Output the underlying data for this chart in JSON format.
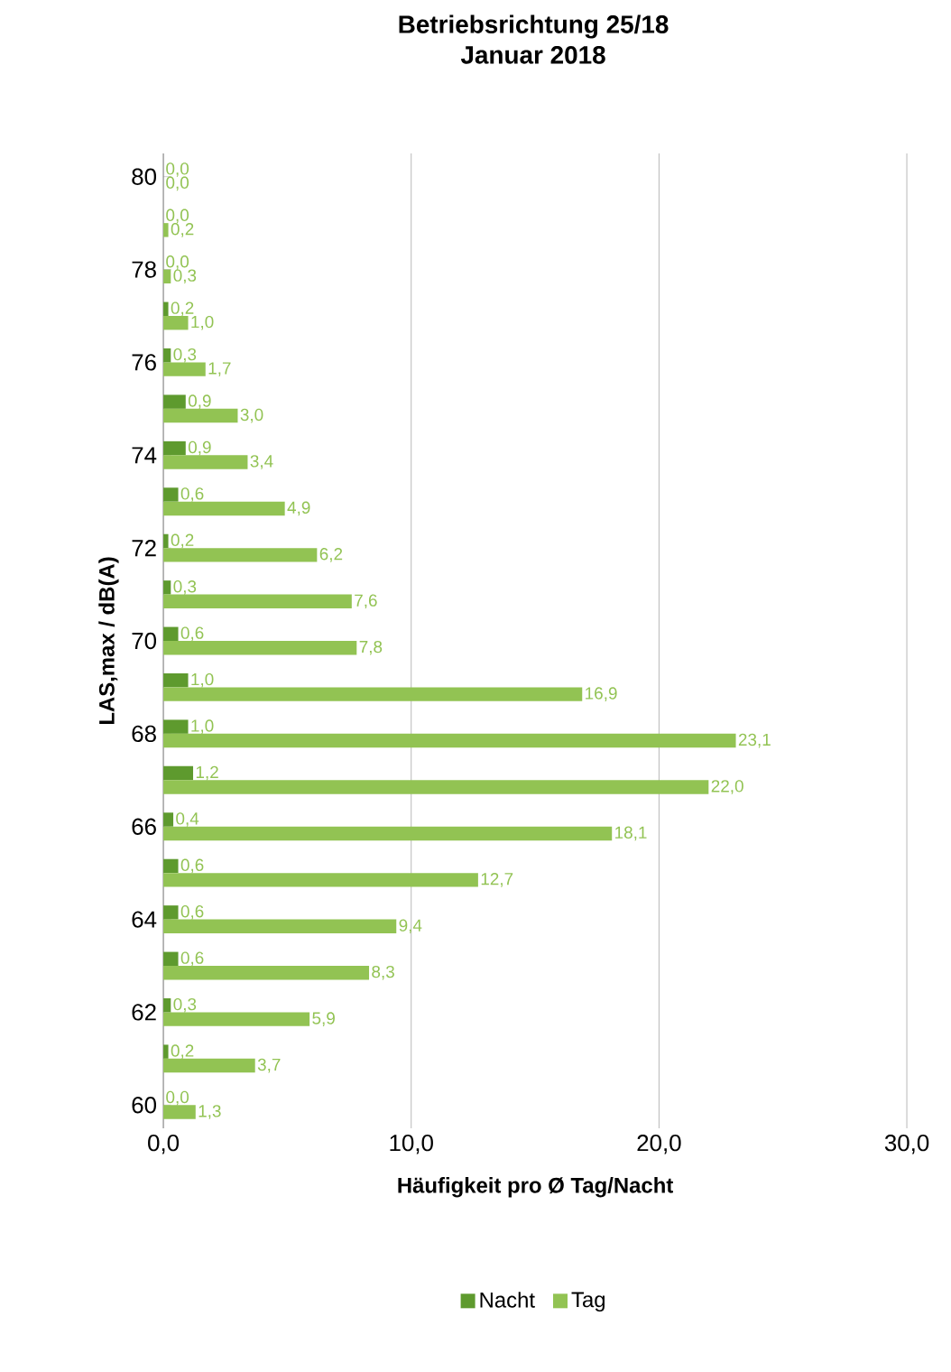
{
  "chart_data": {
    "type": "bar",
    "orientation": "horizontal",
    "title": "Betriebsrichtung 25/18\nJanuar 2018",
    "xlabel": "Häufigkeit pro Ø Tag/Nacht",
    "ylabel": "LAS,max / dB(A)",
    "categories": [
      "80",
      null,
      "78",
      null,
      "76",
      null,
      "74",
      null,
      "72",
      null,
      "70",
      null,
      "68",
      null,
      "66",
      null,
      "64",
      null,
      "62",
      null,
      "60"
    ],
    "series": [
      {
        "name": "Nacht",
        "color": "#5e9a2e",
        "values": [
          0.0,
          0.0,
          0.0,
          0.2,
          0.3,
          0.9,
          0.9,
          0.6,
          0.2,
          0.3,
          0.6,
          1.0,
          1.0,
          1.2,
          0.4,
          0.6,
          0.6,
          0.6,
          0.3,
          0.2,
          0.0
        ],
        "value_labels": [
          "0,0",
          "0,0",
          "0,0",
          "0,2",
          "0,3",
          "0,9",
          "0,9",
          "0,6",
          "0,2",
          "0,3",
          "0,6",
          "1,0",
          "1,0",
          "1,2",
          "0,4",
          "0,6",
          "0,6",
          "0,6",
          "0,3",
          "0,2",
          "0,0"
        ]
      },
      {
        "name": "Tag",
        "color": "#92c353",
        "values": [
          0.0,
          0.2,
          0.3,
          1.0,
          1.7,
          3.0,
          3.4,
          4.9,
          6.2,
          7.6,
          7.8,
          16.9,
          23.1,
          22.0,
          18.1,
          12.7,
          9.4,
          8.3,
          5.9,
          3.7,
          1.3
        ],
        "value_labels": [
          "0,0",
          "0,2",
          "0,3",
          "1,0",
          "1,7",
          "3,0",
          "3,4",
          "4,9",
          "6,2",
          "7,6",
          "7,8",
          "16,9",
          "23,1",
          "22,0",
          "18,1",
          "12,7",
          "9,4",
          "8,3",
          "5,9",
          "3,7",
          "1,3"
        ]
      }
    ],
    "xlim": [
      0,
      30
    ],
    "xticks": [
      {
        "value": 0,
        "label": "0,0"
      },
      {
        "value": 10,
        "label": "10,0"
      },
      {
        "value": 20,
        "label": "20,0"
      },
      {
        "value": 30,
        "label": "30,0"
      }
    ],
    "grid": "x",
    "legend": "bottom"
  }
}
